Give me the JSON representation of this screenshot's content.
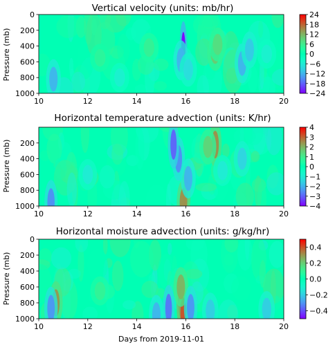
{
  "chart_data": [
    {
      "type": "heatmap",
      "title": "Vertical velocity (units: mb/hr)",
      "xlabel": "",
      "ylabel": "Pressure (mb)",
      "xlim": [
        10,
        20
      ],
      "ylim": [
        1000,
        0
      ],
      "x_ticks": [
        "10",
        "12",
        "14",
        "16",
        "18",
        "20"
      ],
      "y_ticks": [
        "0",
        "200",
        "400",
        "600",
        "800",
        "1000"
      ],
      "colorbar": {
        "colormap": "rainbow",
        "range": [
          -24,
          24
        ],
        "ticks": [
          "24",
          "18",
          "12",
          "6",
          "0",
          "−6",
          "−12",
          "−18",
          "−24"
        ]
      },
      "features": [
        {
          "x": 15.9,
          "y": 450,
          "value": -24
        },
        {
          "x": 15.8,
          "y": 580,
          "value": -12
        },
        {
          "x": 17.2,
          "y": 480,
          "value": 10
        },
        {
          "x": 17.3,
          "y": 380,
          "value": 8
        },
        {
          "x": 10.6,
          "y": 820,
          "value": -12
        },
        {
          "x": 18.3,
          "y": 620,
          "value": -12
        },
        {
          "x": 18.6,
          "y": 450,
          "value": -10
        },
        {
          "x": 16.1,
          "y": 700,
          "value": -8
        },
        {
          "x": 12.5,
          "y": 550,
          "value": 4
        },
        {
          "x": 14.5,
          "y": 420,
          "value": 5
        },
        {
          "x": 13.3,
          "y": 800,
          "value": -5
        },
        {
          "x": 19.3,
          "y": 500,
          "value": -5
        }
      ]
    },
    {
      "type": "heatmap",
      "title": "Horizontal temperature advection (units: K/hr)",
      "xlabel": "",
      "ylabel": "Pressure (mb)",
      "xlim": [
        10,
        20
      ],
      "ylim": [
        1000,
        0
      ],
      "x_ticks": [
        "10",
        "12",
        "14",
        "16",
        "18",
        "20"
      ],
      "y_ticks": [
        "200",
        "400",
        "600",
        "800",
        "1000"
      ],
      "colorbar": {
        "colormap": "rainbow",
        "range": [
          -4,
          4
        ],
        "ticks": [
          "4",
          "3",
          "2",
          "1",
          "0",
          "−1",
          "−2",
          "−3",
          "−4"
        ]
      },
      "features": [
        {
          "x": 16.0,
          "y": 830,
          "value": 3.5
        },
        {
          "x": 15.9,
          "y": 950,
          "value": 2.5
        },
        {
          "x": 15.7,
          "y": 400,
          "value": -2.5
        },
        {
          "x": 15.5,
          "y": 220,
          "value": -3
        },
        {
          "x": 16.1,
          "y": 650,
          "value": -2
        },
        {
          "x": 17.2,
          "y": 220,
          "value": 2.5
        },
        {
          "x": 16.9,
          "y": 250,
          "value": 1.5
        },
        {
          "x": 10.5,
          "y": 950,
          "value": -2.5
        },
        {
          "x": 12.0,
          "y": 600,
          "value": -1
        },
        {
          "x": 17.5,
          "y": 550,
          "value": -1
        },
        {
          "x": 18.3,
          "y": 400,
          "value": -1.5
        }
      ]
    },
    {
      "type": "heatmap",
      "title": "Horizontal moisture advection (units: g/kg/hr)",
      "xlabel": "Days from 2019-11-01",
      "ylabel": "Pressure (mb)",
      "xlim": [
        10,
        20
      ],
      "ylim": [
        1000,
        0
      ],
      "x_ticks": [
        "10",
        "12",
        "14",
        "16",
        "18",
        "20"
      ],
      "y_ticks": [
        "0",
        "200",
        "400",
        "600",
        "800",
        "1000"
      ],
      "colorbar": {
        "colormap": "rainbow",
        "range": [
          -0.5,
          0.5
        ],
        "ticks": [
          "0.4",
          "0.2",
          "0.0",
          "−0.2",
          "−0.4"
        ]
      },
      "features": [
        {
          "x": 15.8,
          "y": 780,
          "value": 0.45
        },
        {
          "x": 15.9,
          "y": 930,
          "value": 0.4
        },
        {
          "x": 15.8,
          "y": 600,
          "value": 0.25
        },
        {
          "x": 10.7,
          "y": 800,
          "value": 0.3
        },
        {
          "x": 10.5,
          "y": 870,
          "value": -0.3
        },
        {
          "x": 15.3,
          "y": 870,
          "value": -0.35
        },
        {
          "x": 16.2,
          "y": 860,
          "value": -0.3
        },
        {
          "x": 14.8,
          "y": 950,
          "value": -0.25
        },
        {
          "x": 17.0,
          "y": 900,
          "value": -0.2
        },
        {
          "x": 19.3,
          "y": 880,
          "value": -0.2
        },
        {
          "x": 12.5,
          "y": 650,
          "value": 0.1
        }
      ]
    }
  ]
}
